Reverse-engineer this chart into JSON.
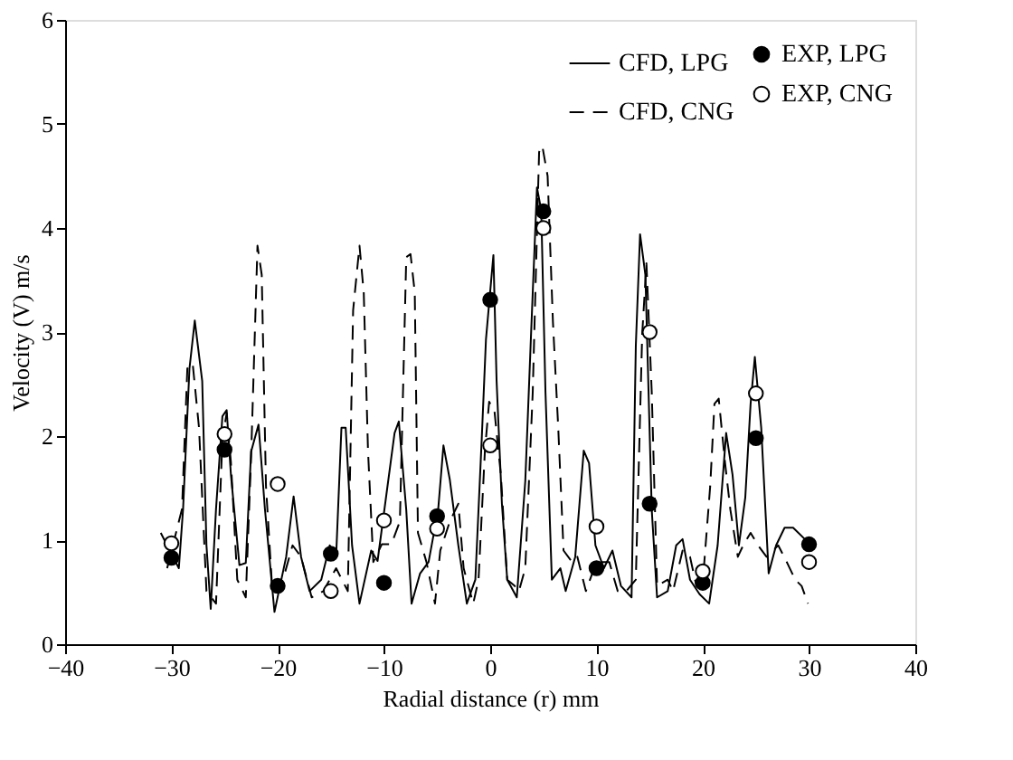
{
  "chart_data": {
    "type": "line",
    "xlabel": "Radial distance (r) mm",
    "ylabel": "Velocity (V) m/s",
    "xlim": [
      -40,
      40
    ],
    "xticks": [
      -40,
      -30,
      -20,
      -10,
      0,
      10,
      20,
      30,
      40
    ],
    "ylim": [
      0,
      6
    ],
    "yticks": [
      0,
      1,
      2,
      3,
      4,
      5,
      6
    ],
    "grid": false,
    "legend": "top right",
    "series": [
      {
        "name": "CFD, LPG",
        "line_style": "solid",
        "color": "#000000",
        "x": [
          -31.0,
          -29.3,
          -28.9,
          -28.3,
          -27.8,
          -27.1,
          -26.7,
          -26.3,
          -25.8,
          -25.2,
          -24.8,
          -24.4,
          -23.6,
          -23.0,
          -22.5,
          -21.8,
          -21.2,
          -20.3,
          -19.2,
          -18.5,
          -17.8,
          -17.0,
          -15.9,
          -15.1,
          -14.5,
          -14.0,
          -13.6,
          -13.0,
          -12.3,
          -11.2,
          -10.6,
          -9.0,
          -8.6,
          -7.9,
          -7.4,
          -6.6,
          -5.8,
          -4.9,
          -4.4,
          -3.8,
          -3.0,
          -2.2,
          -1.4,
          -0.8,
          -0.4,
          0.3,
          0.6,
          1.1,
          1.6,
          2.5,
          3.3,
          3.8,
          4.4,
          4.8,
          5.2,
          5.8,
          6.6,
          7.1,
          8.0,
          8.8,
          9.3,
          9.9,
          10.7,
          11.5,
          12.3,
          13.3,
          13.7,
          14.1,
          14.6,
          15.2,
          15.7,
          16.7,
          17.5,
          18.1,
          18.8,
          19.7,
          20.6,
          21.4,
          22.2,
          22.8,
          23.4,
          24.0,
          24.5,
          24.9,
          25.5,
          26.2,
          26.9,
          27.7,
          28.5,
          29.6
        ],
        "values": [
          1.07,
          0.73,
          1.3,
          2.65,
          3.11,
          2.53,
          0.95,
          0.34,
          1.3,
          2.19,
          2.25,
          1.63,
          0.76,
          0.78,
          1.85,
          2.11,
          1.3,
          0.31,
          0.84,
          1.42,
          0.84,
          0.51,
          0.62,
          0.95,
          0.84,
          2.08,
          2.08,
          0.95,
          0.39,
          0.9,
          0.8,
          2.03,
          2.14,
          1.29,
          0.39,
          0.68,
          0.79,
          1.29,
          1.91,
          1.58,
          0.95,
          0.39,
          0.62,
          1.97,
          2.93,
          3.74,
          2.53,
          1.35,
          0.62,
          0.45,
          1.57,
          2.87,
          4.39,
          4.17,
          2.42,
          0.62,
          0.73,
          0.51,
          0.84,
          1.86,
          1.74,
          0.95,
          0.73,
          0.9,
          0.56,
          0.45,
          2.87,
          3.94,
          3.55,
          1.29,
          0.45,
          0.51,
          0.95,
          1.01,
          0.62,
          0.48,
          0.39,
          0.95,
          2.03,
          1.63,
          0.95,
          1.41,
          2.31,
          2.76,
          2.08,
          0.68,
          0.95,
          1.12,
          1.12,
          1.01
        ]
      },
      {
        "name": "CFD, CNG",
        "line_style": "dashed",
        "color": "#000000",
        "x": [
          -30.4,
          -29.0,
          -28.5,
          -28.0,
          -27.4,
          -26.7,
          -25.8,
          -25.2,
          -24.8,
          -24.4,
          -23.8,
          -23.0,
          -22.5,
          -21.9,
          -21.5,
          -21.1,
          -20.5,
          -19.5,
          -18.6,
          -17.8,
          -16.8,
          -15.7,
          -14.5,
          -13.4,
          -12.9,
          -12.3,
          -11.9,
          -11.5,
          -11.0,
          -10.2,
          -9.3,
          -8.5,
          -7.9,
          -7.5,
          -7.1,
          -6.8,
          -6.0,
          -5.2,
          -4.7,
          -3.8,
          -3.0,
          -2.5,
          -1.6,
          -1.1,
          -0.5,
          -0.1,
          0.4,
          1.0,
          1.6,
          2.3,
          2.7,
          3.3,
          4.0,
          4.6,
          4.9,
          5.4,
          5.9,
          6.4,
          6.9,
          7.7,
          8.2,
          9.0,
          9.6,
          10.4,
          11.2,
          12.0,
          12.8,
          13.7,
          14.3,
          14.7,
          15.2,
          15.7,
          16.7,
          17.2,
          18.1,
          18.8,
          19.4,
          20.1,
          20.7,
          21.1,
          21.5,
          22.1,
          22.6,
          23.3,
          23.8,
          24.5,
          25.2,
          26.0,
          27.1,
          27.9,
          28.7,
          29.3,
          29.9
        ],
        "values": [
          0.73,
          1.3,
          2.65,
          2.7,
          2.08,
          0.51,
          0.39,
          1.97,
          2.22,
          1.75,
          0.62,
          0.45,
          1.8,
          3.83,
          3.55,
          1.52,
          0.51,
          0.62,
          0.95,
          0.84,
          0.45,
          0.51,
          0.73,
          0.51,
          3.21,
          3.83,
          3.38,
          1.86,
          0.79,
          0.96,
          0.96,
          1.18,
          3.72,
          3.75,
          3.38,
          1.07,
          0.79,
          0.39,
          0.9,
          1.18,
          1.35,
          0.73,
          0.39,
          0.62,
          1.86,
          2.33,
          2.24,
          1.63,
          0.62,
          0.56,
          0.51,
          0.73,
          2.42,
          4.73,
          4.79,
          4.5,
          3.1,
          2.08,
          0.9,
          0.79,
          0.84,
          0.51,
          0.68,
          0.79,
          0.79,
          0.51,
          0.51,
          0.62,
          2.98,
          3.66,
          2.42,
          0.56,
          0.62,
          0.51,
          0.9,
          0.84,
          0.56,
          0.73,
          1.52,
          2.31,
          2.36,
          1.74,
          1.29,
          0.84,
          0.95,
          1.07,
          0.95,
          0.84,
          0.95,
          0.79,
          0.62,
          0.56,
          0.39
        ]
      },
      {
        "name": "EXP, LPG",
        "type": "scatter",
        "marker": "circle",
        "color": "#000000",
        "x": [
          -30,
          -25,
          -20,
          -15,
          -10,
          -5,
          0,
          5,
          10,
          15,
          20,
          25,
          30
        ],
        "values": [
          0.83,
          1.87,
          0.56,
          0.87,
          0.59,
          1.23,
          3.31,
          4.16,
          0.73,
          1.35,
          0.59,
          1.98,
          0.96
        ]
      },
      {
        "name": "EXP, CNG",
        "type": "scatter",
        "marker": "circle",
        "color": "#ffffff",
        "x": [
          -30,
          -25,
          -20,
          -15,
          -10,
          -5,
          0,
          5,
          10,
          15,
          20,
          25,
          30
        ],
        "values": [
          0.97,
          2.02,
          1.54,
          0.51,
          1.19,
          1.11,
          1.91,
          4.0,
          1.13,
          3.0,
          0.7,
          2.41,
          0.79
        ]
      }
    ]
  }
}
